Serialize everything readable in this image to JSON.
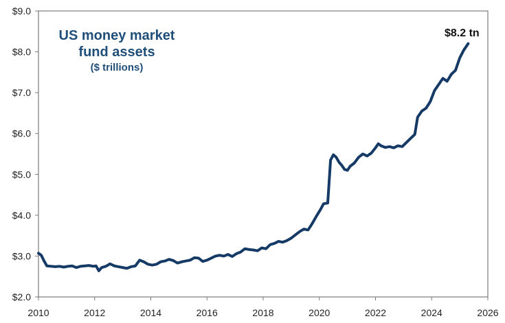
{
  "chart_data": {
    "type": "line",
    "title_lines": [
      "US money market",
      "fund assets"
    ],
    "subtitle": "($ trillions)",
    "end_label": "$8.2 tn",
    "xlim": [
      2010,
      2026
    ],
    "ylim": [
      2.0,
      9.0
    ],
    "x_ticks": [
      2010,
      2012,
      2014,
      2016,
      2018,
      2020,
      2022,
      2024,
      2026
    ],
    "x_tick_labels": [
      "2010",
      "2012",
      "2014",
      "2016",
      "2018",
      "2020",
      "2022",
      "2024",
      "2026"
    ],
    "y_ticks": [
      2,
      3,
      4,
      5,
      6,
      7,
      8,
      9
    ],
    "y_tick_labels": [
      "$2.0",
      "$3.0",
      "$4.0",
      "$5.0",
      "$6.0",
      "$7.0",
      "$8.0",
      "$9.0"
    ],
    "grid": false,
    "series": [
      {
        "color": "#163a66",
        "points": [
          [
            2010.0,
            3.07
          ],
          [
            2010.1,
            3.02
          ],
          [
            2010.2,
            2.88
          ],
          [
            2010.3,
            2.76
          ],
          [
            2010.45,
            2.75
          ],
          [
            2010.6,
            2.74
          ],
          [
            2010.75,
            2.75
          ],
          [
            2010.9,
            2.73
          ],
          [
            2011.05,
            2.75
          ],
          [
            2011.2,
            2.76
          ],
          [
            2011.35,
            2.72
          ],
          [
            2011.5,
            2.75
          ],
          [
            2011.65,
            2.76
          ],
          [
            2011.8,
            2.77
          ],
          [
            2011.95,
            2.75
          ],
          [
            2012.05,
            2.76
          ],
          [
            2012.15,
            2.64
          ],
          [
            2012.25,
            2.72
          ],
          [
            2012.4,
            2.75
          ],
          [
            2012.55,
            2.81
          ],
          [
            2012.7,
            2.76
          ],
          [
            2012.85,
            2.74
          ],
          [
            2013.0,
            2.72
          ],
          [
            2013.15,
            2.7
          ],
          [
            2013.3,
            2.74
          ],
          [
            2013.45,
            2.76
          ],
          [
            2013.6,
            2.9
          ],
          [
            2013.75,
            2.86
          ],
          [
            2013.9,
            2.8
          ],
          [
            2014.05,
            2.78
          ],
          [
            2014.2,
            2.8
          ],
          [
            2014.35,
            2.86
          ],
          [
            2014.5,
            2.88
          ],
          [
            2014.65,
            2.92
          ],
          [
            2014.8,
            2.89
          ],
          [
            2014.95,
            2.83
          ],
          [
            2015.1,
            2.86
          ],
          [
            2015.25,
            2.88
          ],
          [
            2015.4,
            2.9
          ],
          [
            2015.55,
            2.96
          ],
          [
            2015.7,
            2.95
          ],
          [
            2015.85,
            2.87
          ],
          [
            2016.0,
            2.9
          ],
          [
            2016.15,
            2.95
          ],
          [
            2016.3,
            3.0
          ],
          [
            2016.45,
            3.02
          ],
          [
            2016.6,
            3.0
          ],
          [
            2016.75,
            3.04
          ],
          [
            2016.9,
            2.99
          ],
          [
            2017.05,
            3.06
          ],
          [
            2017.2,
            3.1
          ],
          [
            2017.35,
            3.18
          ],
          [
            2017.5,
            3.16
          ],
          [
            2017.65,
            3.15
          ],
          [
            2017.8,
            3.13
          ],
          [
            2017.95,
            3.2
          ],
          [
            2018.1,
            3.18
          ],
          [
            2018.25,
            3.28
          ],
          [
            2018.4,
            3.31
          ],
          [
            2018.55,
            3.36
          ],
          [
            2018.7,
            3.34
          ],
          [
            2018.85,
            3.38
          ],
          [
            2019.0,
            3.44
          ],
          [
            2019.15,
            3.52
          ],
          [
            2019.3,
            3.6
          ],
          [
            2019.45,
            3.66
          ],
          [
            2019.6,
            3.64
          ],
          [
            2019.75,
            3.8
          ],
          [
            2019.9,
            3.98
          ],
          [
            2020.05,
            4.15
          ],
          [
            2020.15,
            4.28
          ],
          [
            2020.3,
            4.3
          ],
          [
            2020.4,
            5.35
          ],
          [
            2020.5,
            5.48
          ],
          [
            2020.6,
            5.42
          ],
          [
            2020.7,
            5.3
          ],
          [
            2020.8,
            5.22
          ],
          [
            2020.9,
            5.12
          ],
          [
            2021.0,
            5.1
          ],
          [
            2021.1,
            5.2
          ],
          [
            2021.25,
            5.28
          ],
          [
            2021.4,
            5.42
          ],
          [
            2021.55,
            5.5
          ],
          [
            2021.7,
            5.45
          ],
          [
            2021.85,
            5.52
          ],
          [
            2022.0,
            5.65
          ],
          [
            2022.1,
            5.75
          ],
          [
            2022.2,
            5.7
          ],
          [
            2022.35,
            5.66
          ],
          [
            2022.5,
            5.68
          ],
          [
            2022.65,
            5.65
          ],
          [
            2022.8,
            5.7
          ],
          [
            2022.95,
            5.68
          ],
          [
            2023.1,
            5.78
          ],
          [
            2023.25,
            5.88
          ],
          [
            2023.4,
            5.98
          ],
          [
            2023.5,
            6.4
          ],
          [
            2023.65,
            6.55
          ],
          [
            2023.8,
            6.62
          ],
          [
            2023.95,
            6.78
          ],
          [
            2024.1,
            7.05
          ],
          [
            2024.25,
            7.2
          ],
          [
            2024.4,
            7.35
          ],
          [
            2024.55,
            7.28
          ],
          [
            2024.7,
            7.45
          ],
          [
            2024.85,
            7.55
          ],
          [
            2025.0,
            7.85
          ],
          [
            2025.15,
            8.05
          ],
          [
            2025.3,
            8.2
          ]
        ]
      }
    ],
    "title_color": "#1f4e79",
    "axis_color": "#7a7a7a",
    "tick_color": "#222222"
  }
}
